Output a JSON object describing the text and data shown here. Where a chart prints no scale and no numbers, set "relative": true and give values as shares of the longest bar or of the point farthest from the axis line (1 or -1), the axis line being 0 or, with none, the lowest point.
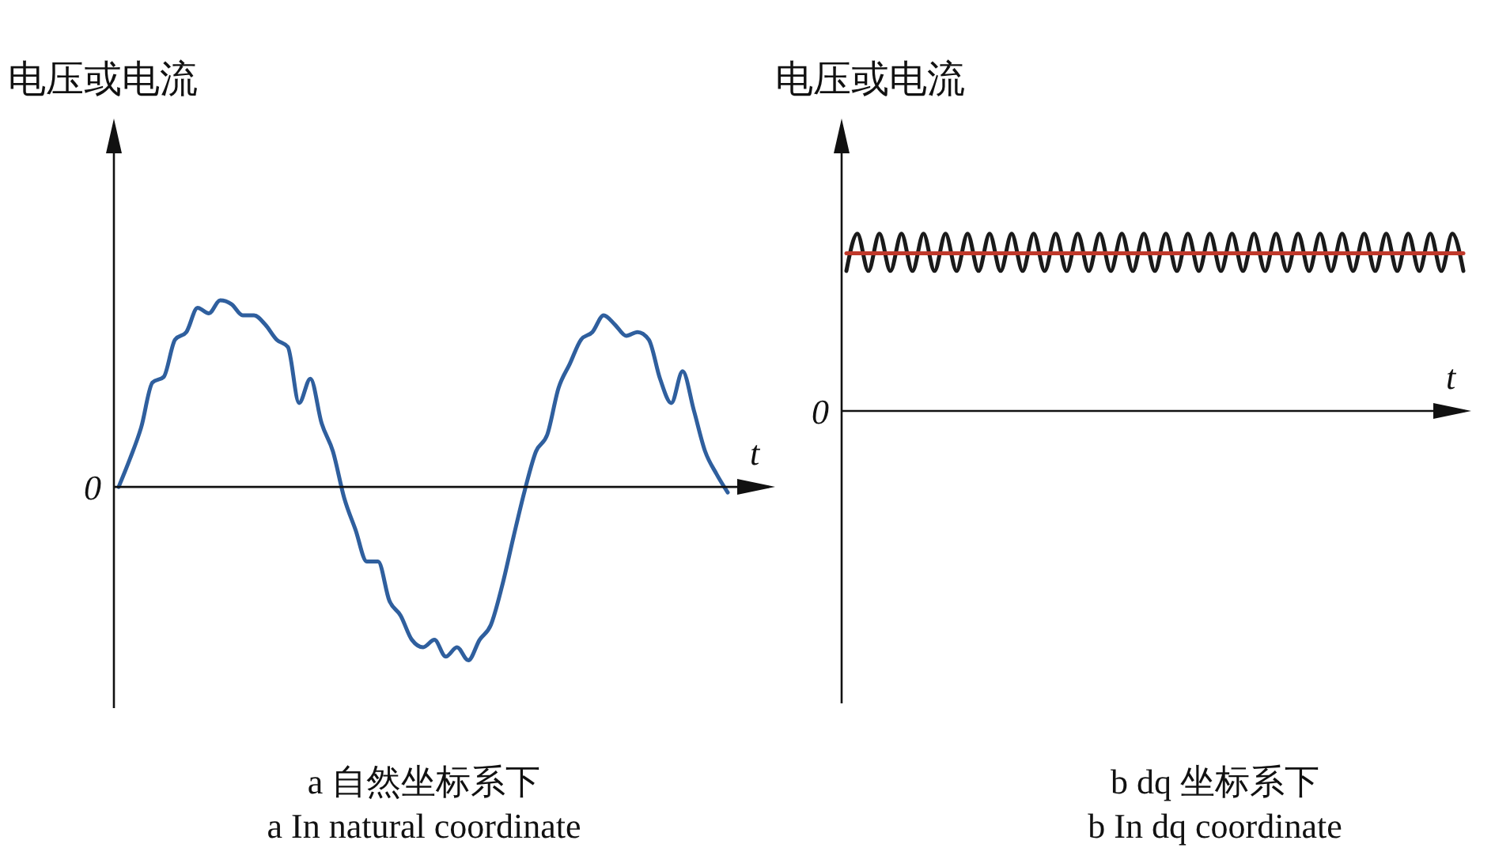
{
  "chart_data": [
    {
      "type": "line",
      "relative": true,
      "title": "a 自然坐标系下",
      "subtitle": "a In natural coordinate",
      "xlabel": "t",
      "ylabel": "电压或电流",
      "annotations": [
        "0"
      ],
      "categories": [
        null,
        null,
        null,
        null,
        null,
        null,
        null,
        null,
        null,
        null,
        null,
        null,
        null,
        null,
        null,
        null,
        null,
        null,
        null,
        null,
        null,
        null,
        null,
        null,
        null,
        null,
        null,
        null,
        null,
        null,
        null,
        null,
        null,
        null,
        null,
        null,
        null,
        null,
        null,
        null,
        null,
        null,
        null,
        null,
        null,
        null,
        null,
        null,
        null,
        null,
        null,
        null,
        null,
        null,
        null
      ],
      "series": [
        {
          "color": "#2f5f9e",
          "values": [
            0,
            0.15,
            0.32,
            0.56,
            0.59,
            0.79,
            0.83,
            0.96,
            0.93,
            1,
            0.98,
            0.92,
            0.92,
            0.87,
            0.79,
            0.75,
            0.45,
            0.58,
            0.34,
            0.19,
            -0.06,
            -0.23,
            -0.4,
            -0.4,
            -0.61,
            -0.69,
            -0.82,
            -0.86,
            -0.82,
            -0.91,
            -0.86,
            -0.93,
            -0.82,
            -0.74,
            -0.53,
            -0.27,
            -0.02,
            0.19,
            0.28,
            0.53,
            0.66,
            0.79,
            0.83,
            0.92,
            0.87,
            0.81,
            0.83,
            0.79,
            0.58,
            0.45,
            0.62,
            0.41,
            0.19,
            0.07,
            -0.03
          ]
        }
      ]
    },
    {
      "type": "line",
      "relative": true,
      "title": "b dq 坐标系下",
      "subtitle": "b In dq coordinate",
      "xlabel": "t",
      "ylabel": "电压或电流",
      "annotations": [
        "0"
      ],
      "categories": [
        null,
        null,
        null,
        null,
        null,
        null,
        null,
        null,
        null,
        null,
        null,
        null,
        null,
        null,
        null,
        null,
        null,
        null,
        null,
        null,
        null,
        null,
        null,
        null,
        null,
        null,
        null,
        null,
        null,
        null,
        null,
        null,
        null,
        null,
        null,
        null,
        null,
        null,
        null,
        null,
        null,
        null,
        null,
        null,
        null,
        null,
        null,
        null,
        null,
        null,
        null,
        null,
        null,
        null,
        null,
        null,
        null
      ],
      "series": [
        {
          "color": "#1a1a1a",
          "values": [
            0.79,
            1,
            0.79,
            1,
            0.79,
            1,
            0.79,
            1,
            0.79,
            1,
            0.79,
            1,
            0.79,
            1,
            0.79,
            1,
            0.79,
            1,
            0.79,
            1,
            0.79,
            1,
            0.79,
            1,
            0.79,
            1,
            0.79,
            1,
            0.79,
            1,
            0.79,
            1,
            0.79,
            1,
            0.79,
            1,
            0.79,
            1,
            0.79,
            1,
            0.79,
            1,
            0.79,
            1,
            0.79,
            1,
            0.79,
            1,
            0.79,
            1,
            0.79,
            1,
            0.79,
            1,
            0.79,
            1,
            0.79
          ]
        },
        {
          "color": "#c0392b",
          "values": [
            0.89,
            0.89,
            0.89,
            0.89,
            0.89,
            0.89,
            0.89,
            0.89,
            0.89,
            0.89,
            0.89,
            0.89,
            0.89,
            0.89,
            0.89,
            0.89,
            0.89,
            0.89,
            0.89,
            0.89,
            0.89,
            0.89,
            0.89,
            0.89,
            0.89,
            0.89,
            0.89,
            0.89,
            0.89,
            0.89,
            0.89,
            0.89,
            0.89,
            0.89,
            0.89,
            0.89,
            0.89,
            0.89,
            0.89,
            0.89,
            0.89,
            0.89,
            0.89,
            0.89,
            0.89,
            0.89,
            0.89,
            0.89,
            0.89,
            0.89,
            0.89,
            0.89,
            0.89,
            0.89,
            0.89,
            0.89,
            0.89
          ]
        }
      ]
    }
  ]
}
